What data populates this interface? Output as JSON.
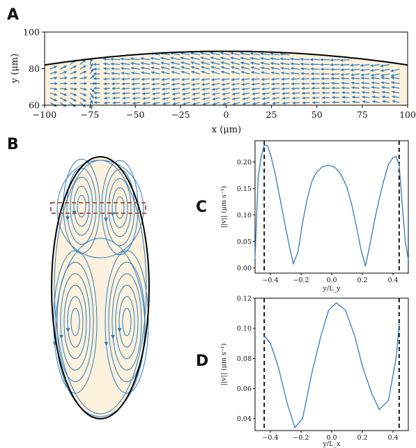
{
  "panels": {
    "A": "A",
    "B": "B",
    "C": "C",
    "D": "D"
  },
  "colors": {
    "fluid": "#fbf1dc",
    "vector": "#2f7bbf",
    "outline": "#000000",
    "box": "#9c4b3c"
  },
  "chart_data": [
    {
      "panel": "A",
      "type": "quiver",
      "xlabel": "x (μm)",
      "ylabel": "y (μm)",
      "xlim": [
        -100,
        100
      ],
      "ylim": [
        60,
        100
      ],
      "xticks": [
        "−100",
        "−75",
        "−50",
        "−25",
        "0",
        "25",
        "50",
        "75",
        "100"
      ],
      "yticks": [
        "60",
        "80",
        "100"
      ],
      "boundary_top_y": {
        "x_-100": 82,
        "x_0": 89.5,
        "x_100": 82
      },
      "flow_description": "flow leftwards near top boundary, converging/diverging region near x≈-70"
    },
    {
      "panel": "B",
      "type": "streamlines",
      "vortices": 4,
      "highlight_box": "dashed rectangle across upper vortex pair"
    },
    {
      "panel": "C",
      "type": "line",
      "xlabel": "y/L_y",
      "ylabel": "||v|| (μm s⁻¹)",
      "xlim": [
        -0.5,
        0.5
      ],
      "ylim": [
        -0.01,
        0.24
      ],
      "xticks": [
        "−0.4",
        "−0.2",
        "0.0",
        "0.2",
        "0.4"
      ],
      "yticks": [
        "0.00",
        "0.05",
        "0.10",
        "0.15",
        "0.20"
      ],
      "vlines": [
        -0.44,
        0.44
      ],
      "x": [
        -0.5,
        -0.48,
        -0.46,
        -0.44,
        -0.42,
        -0.4,
        -0.37,
        -0.34,
        -0.31,
        -0.28,
        -0.25,
        -0.22,
        -0.19,
        -0.16,
        -0.13,
        -0.1,
        -0.06,
        -0.02,
        0.02,
        0.06,
        0.1,
        0.13,
        0.16,
        0.19,
        0.22,
        0.25,
        0.28,
        0.31,
        0.34,
        0.37,
        0.4,
        0.42,
        0.44,
        0.46,
        0.48,
        0.5
      ],
      "values": [
        0.017,
        0.17,
        0.21,
        0.232,
        0.231,
        0.215,
        0.18,
        0.135,
        0.09,
        0.046,
        0.008,
        0.03,
        0.085,
        0.13,
        0.163,
        0.18,
        0.191,
        0.194,
        0.19,
        0.177,
        0.152,
        0.12,
        0.08,
        0.036,
        0.003,
        0.045,
        0.09,
        0.13,
        0.165,
        0.195,
        0.208,
        0.21,
        0.195,
        0.12,
        0.05,
        0.015
      ]
    },
    {
      "panel": "D",
      "type": "line",
      "xlabel": "y/L_x",
      "ylabel": "||v|| (μm s⁻¹)",
      "xlim": [
        -0.5,
        0.5
      ],
      "ylim": [
        0.032,
        0.12
      ],
      "xticks": [
        "−0.4",
        "−0.2",
        "0.0",
        "0.2",
        "0.4"
      ],
      "yticks": [
        "0.04",
        "0.06",
        "0.08",
        "0.10",
        "0.12"
      ],
      "vlines": [
        -0.44,
        0.44
      ],
      "x": [
        -0.44,
        -0.4,
        -0.35,
        -0.29,
        -0.24,
        -0.19,
        -0.13,
        -0.07,
        -0.02,
        0.03,
        0.09,
        0.15,
        0.2,
        0.26,
        0.31,
        0.37,
        0.42,
        0.44
      ],
      "values": [
        0.095,
        0.09,
        0.075,
        0.05,
        0.034,
        0.04,
        0.07,
        0.095,
        0.112,
        0.117,
        0.112,
        0.095,
        0.075,
        0.057,
        0.046,
        0.052,
        0.08,
        0.103
      ]
    }
  ]
}
